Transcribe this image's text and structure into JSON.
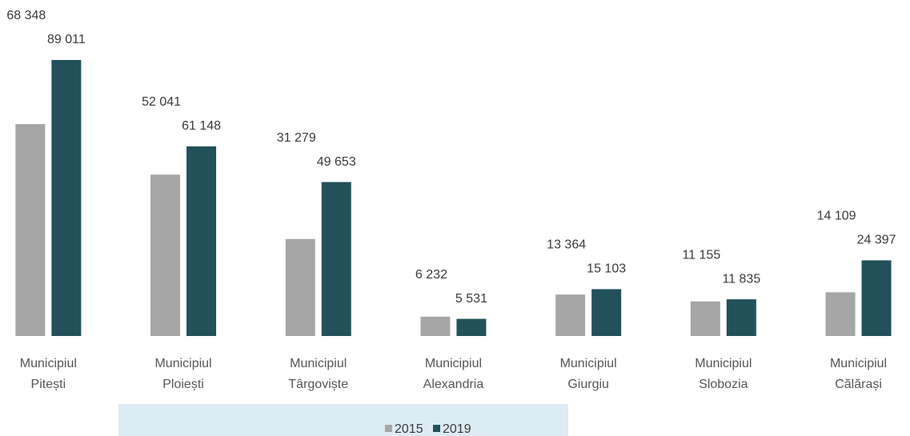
{
  "chart_data": {
    "type": "bar",
    "categories": [
      "Municipiul Pitești",
      "Municipiul Ploiești",
      "Municipiul Târgoviște",
      "Municipiul Alexandria",
      "Municipiul Giurgiu",
      "Municipiul Slobozia",
      "Municipiul Călărași"
    ],
    "series": [
      {
        "name": "2015",
        "color": "#a6a6a6",
        "values": [
          68348,
          52041,
          31279,
          6232,
          13364,
          11155,
          14109
        ],
        "value_labels": [
          "68 348",
          "52 041",
          "31 279",
          "6 232",
          "13 364",
          "11 155",
          "14 109"
        ]
      },
      {
        "name": "2019",
        "color": "#22505b",
        "values": [
          89011,
          61148,
          49653,
          5531,
          15103,
          11835,
          24397
        ],
        "value_labels": [
          "89 011",
          "61 148",
          "49 653",
          "5 531",
          "15 103",
          "11 835",
          "24 397"
        ]
      }
    ],
    "legend": "bottom"
  }
}
